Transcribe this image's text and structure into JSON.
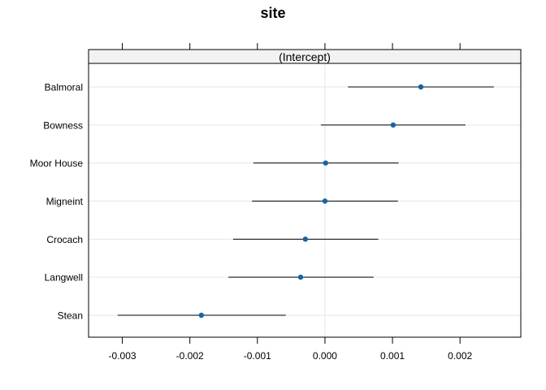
{
  "chart_data": {
    "type": "dotplot",
    "title": "site",
    "panel_label": "(Intercept)",
    "categories": [
      "Balmoral",
      "Bowness",
      "Moor House",
      "Migneint",
      "Crocach",
      "Langwell",
      "Stean"
    ],
    "estimate": [
      0.00142,
      0.00101,
      1e-05,
      0.0,
      -0.00029,
      -0.00036,
      -0.00183
    ],
    "lower": [
      0.00034,
      -6e-05,
      -0.00106,
      -0.00108,
      -0.00136,
      -0.00143,
      -0.00307
    ],
    "upper": [
      0.0025,
      0.00208,
      0.00109,
      0.00108,
      0.00079,
      0.00072,
      -0.00058
    ],
    "xlim": [
      -0.0035,
      0.0029
    ],
    "xticks": [
      -0.003,
      -0.002,
      -0.001,
      0.0,
      0.001,
      0.002
    ],
    "xtick_labels": [
      "-0.003",
      "-0.002",
      "-0.001",
      "0.000",
      "0.001",
      "0.002"
    ],
    "xlabel": "",
    "ylabel": "",
    "grid": true,
    "reference_line": 0,
    "point_color": "#1763a4",
    "line_color": "#000000",
    "grid_color": "#e6e6e6",
    "strip_color": "#f2f2f2"
  }
}
